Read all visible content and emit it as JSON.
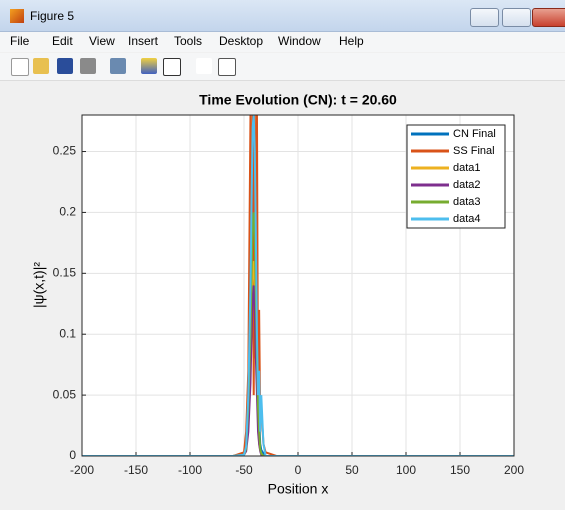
{
  "window": {
    "title": "Figure 5",
    "menu": [
      "File",
      "Edit",
      "View",
      "Insert",
      "Tools",
      "Desktop",
      "Window",
      "Help"
    ]
  },
  "chart_data": {
    "type": "line",
    "title": "Time Evolution (CN): t = 20.60",
    "x_label": "Position x",
    "y_label": "|ψ(x,t)|²",
    "x": [
      -200,
      -60,
      -50,
      -48,
      -46,
      -44,
      -43,
      -42,
      -41,
      -40,
      -39,
      -38,
      -37,
      -36,
      -35,
      -34,
      -32,
      -30,
      -20,
      200
    ],
    "series": [
      {
        "name": "CN Final",
        "color": "#0072bd",
        "values": [
          0,
          0,
          0.002,
          0.01,
          0.06,
          0.15,
          0.22,
          0.27,
          0.28,
          0.26,
          0.2,
          0.12,
          0.06,
          0.03,
          0.01,
          0.005,
          0.002,
          0,
          0,
          0
        ]
      },
      {
        "name": "SS Final",
        "color": "#d95319",
        "values": [
          0,
          0,
          0.003,
          0.02,
          0.07,
          0.28,
          0.1,
          0.28,
          0.05,
          0.28,
          0.08,
          0.28,
          0.04,
          0.12,
          0.03,
          0.04,
          0.01,
          0.003,
          0,
          0
        ]
      },
      {
        "name": "data1",
        "color": "#edb120",
        "values": [
          0,
          0,
          0.001,
          0.005,
          0.03,
          0.08,
          0.12,
          0.15,
          0.16,
          0.14,
          0.1,
          0.06,
          0.03,
          0.01,
          0.005,
          0.002,
          0,
          0,
          0,
          0
        ]
      },
      {
        "name": "data2",
        "color": "#7e2f8e",
        "values": [
          0,
          0,
          0.001,
          0.004,
          0.02,
          0.06,
          0.1,
          0.13,
          0.14,
          0.12,
          0.08,
          0.05,
          0.02,
          0.01,
          0.004,
          0.001,
          0,
          0,
          0,
          0
        ]
      },
      {
        "name": "data3",
        "color": "#77ac30",
        "values": [
          0,
          0,
          0.001,
          0.006,
          0.04,
          0.1,
          0.15,
          0.19,
          0.2,
          0.18,
          0.13,
          0.08,
          0.04,
          0.02,
          0.006,
          0.002,
          0,
          0,
          0,
          0
        ]
      },
      {
        "name": "data4",
        "color": "#4dbeee",
        "values": [
          0,
          0,
          0.001,
          0.008,
          0.05,
          0.14,
          0.21,
          0.27,
          0.28,
          0.25,
          0.18,
          0.1,
          0.05,
          0.07,
          0.02,
          0.05,
          0.01,
          0,
          0,
          0
        ]
      }
    ],
    "xlim": [
      -200,
      200
    ],
    "ylim": [
      0,
      0.28
    ],
    "xticks": [
      -200,
      -150,
      -100,
      -50,
      0,
      50,
      100,
      150,
      200
    ],
    "yticks": [
      0,
      0.05,
      0.1,
      0.15,
      0.2,
      0.25
    ],
    "grid": true,
    "legend": "northeast"
  }
}
